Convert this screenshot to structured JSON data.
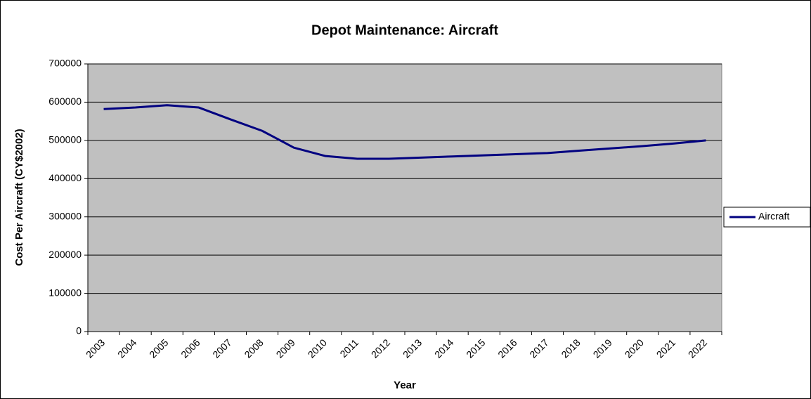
{
  "chart_data": {
    "type": "line",
    "title": "Depot Maintenance: Aircraft",
    "x_label": "Year",
    "y_label": "Cost Per Aircraft (CY$2002)",
    "categories": [
      "2003",
      "2004",
      "2005",
      "2006",
      "2007",
      "2008",
      "2009",
      "2010",
      "2011",
      "2012",
      "2013",
      "2014",
      "2015",
      "2016",
      "2017",
      "2018",
      "2019",
      "2020",
      "2021",
      "2022"
    ],
    "series": [
      {
        "name": "Aircraft",
        "color": "#000080",
        "values": [
          582000,
          586000,
          592000,
          586000,
          555000,
          525000,
          481000,
          459000,
          452000,
          452000,
          455000,
          458000,
          461000,
          464000,
          467000,
          473000,
          479000,
          485000,
          492000,
          500000
        ]
      }
    ],
    "ylim": [
      0,
      700000
    ],
    "yticks": [
      0,
      100000,
      200000,
      300000,
      400000,
      500000,
      600000,
      700000
    ],
    "grid": true,
    "plot_background": "#c0c0c0",
    "legend": "right"
  }
}
